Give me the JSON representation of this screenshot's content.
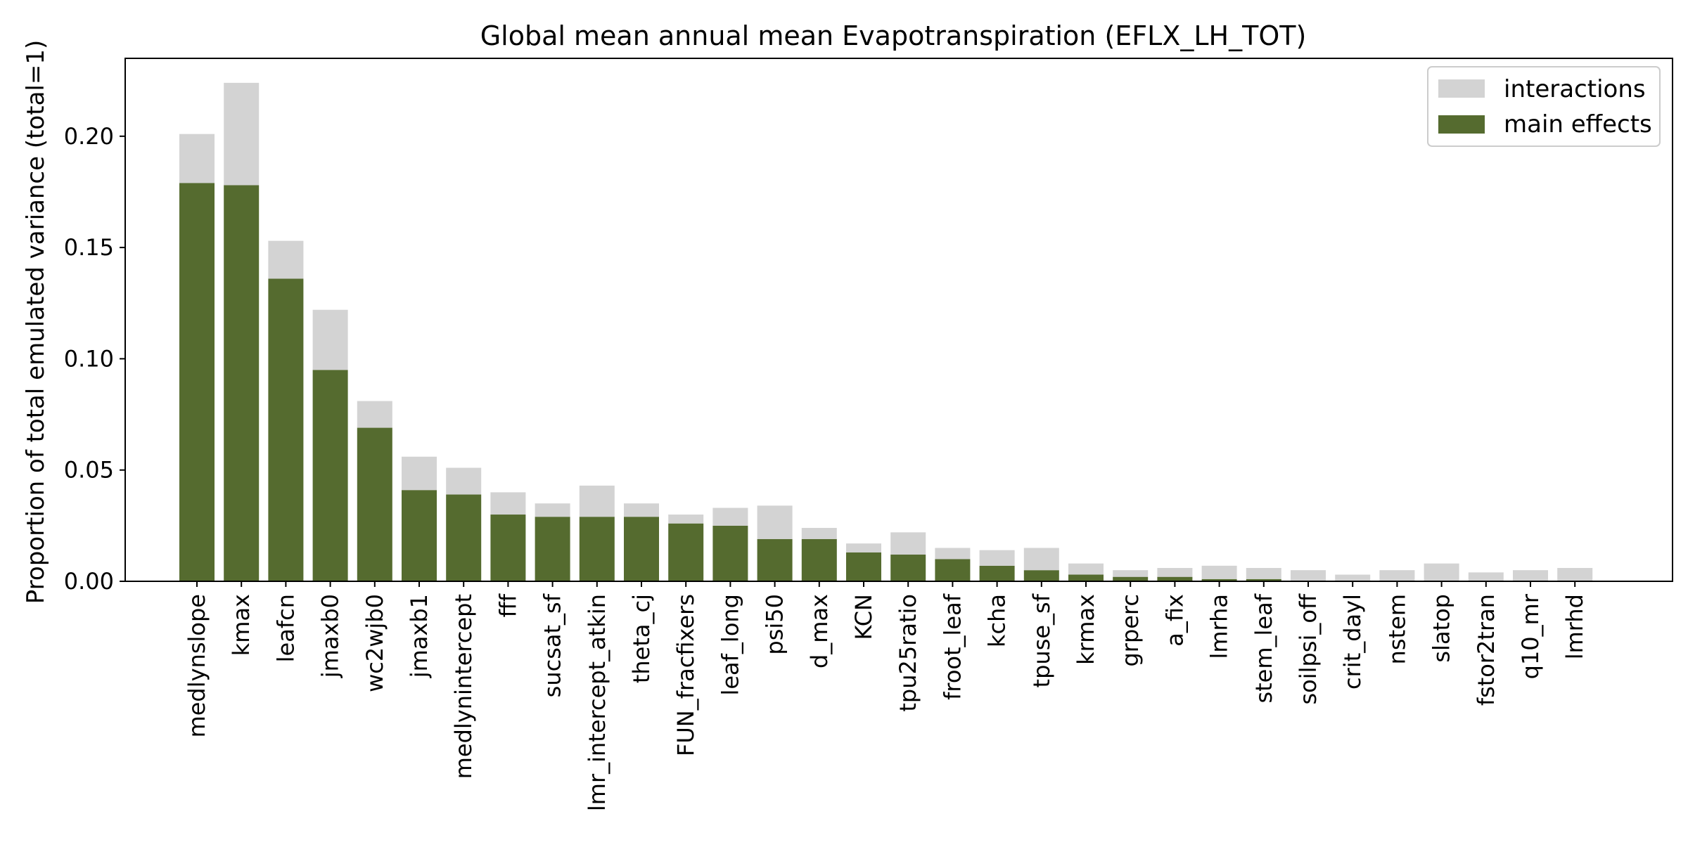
{
  "chart_data": {
    "type": "bar",
    "stacked": true,
    "title": "Global mean annual mean Evapotranspiration (EFLX_LH_TOT)",
    "xlabel": "",
    "ylabel": "Proportion of total emulated variance (total=1)",
    "ylim": [
      0.0,
      0.235
    ],
    "yticks": [
      0.0,
      0.05,
      0.1,
      0.15,
      0.2
    ],
    "ytick_labels": [
      "0.00",
      "0.05",
      "0.10",
      "0.15",
      "0.20"
    ],
    "grid": false,
    "legend_position": "top-right",
    "categories": [
      "medlynslope",
      "kmax",
      "leafcn",
      "jmaxb0",
      "wc2wjb0",
      "jmaxb1",
      "medlynintercept",
      "fff",
      "sucsat_sf",
      "lmr_intercept_atkin",
      "theta_cj",
      "FUN_fracfixers",
      "leaf_long",
      "psi50",
      "d_max",
      "KCN",
      "tpu25ratio",
      "froot_leaf",
      "kcha",
      "tpuse_sf",
      "krmax",
      "grperc",
      "a_fix",
      "lmrha",
      "stem_leaf",
      "soilpsi_off",
      "crit_dayl",
      "nstem",
      "slatop",
      "fstor2tran",
      "q10_mr",
      "lmrhd"
    ],
    "series": [
      {
        "name": "interactions",
        "color": "#d3d3d3",
        "values": [
          0.022,
          0.046,
          0.017,
          0.027,
          0.012,
          0.015,
          0.012,
          0.01,
          0.006,
          0.014,
          0.006,
          0.004,
          0.008,
          0.015,
          0.005,
          0.004,
          0.01,
          0.005,
          0.007,
          0.01,
          0.005,
          0.003,
          0.004,
          0.006,
          0.005,
          0.005,
          0.003,
          0.005,
          0.008,
          0.004,
          0.005,
          0.006
        ]
      },
      {
        "name": "main effects",
        "color": "#556b2f",
        "values": [
          0.179,
          0.178,
          0.136,
          0.095,
          0.069,
          0.041,
          0.039,
          0.03,
          0.029,
          0.029,
          0.029,
          0.026,
          0.025,
          0.019,
          0.019,
          0.013,
          0.012,
          0.01,
          0.007,
          0.005,
          0.003,
          0.002,
          0.002,
          0.001,
          0.001,
          0.0,
          0.0,
          0.0,
          0.0,
          0.0,
          0.0,
          0.0
        ]
      }
    ]
  }
}
